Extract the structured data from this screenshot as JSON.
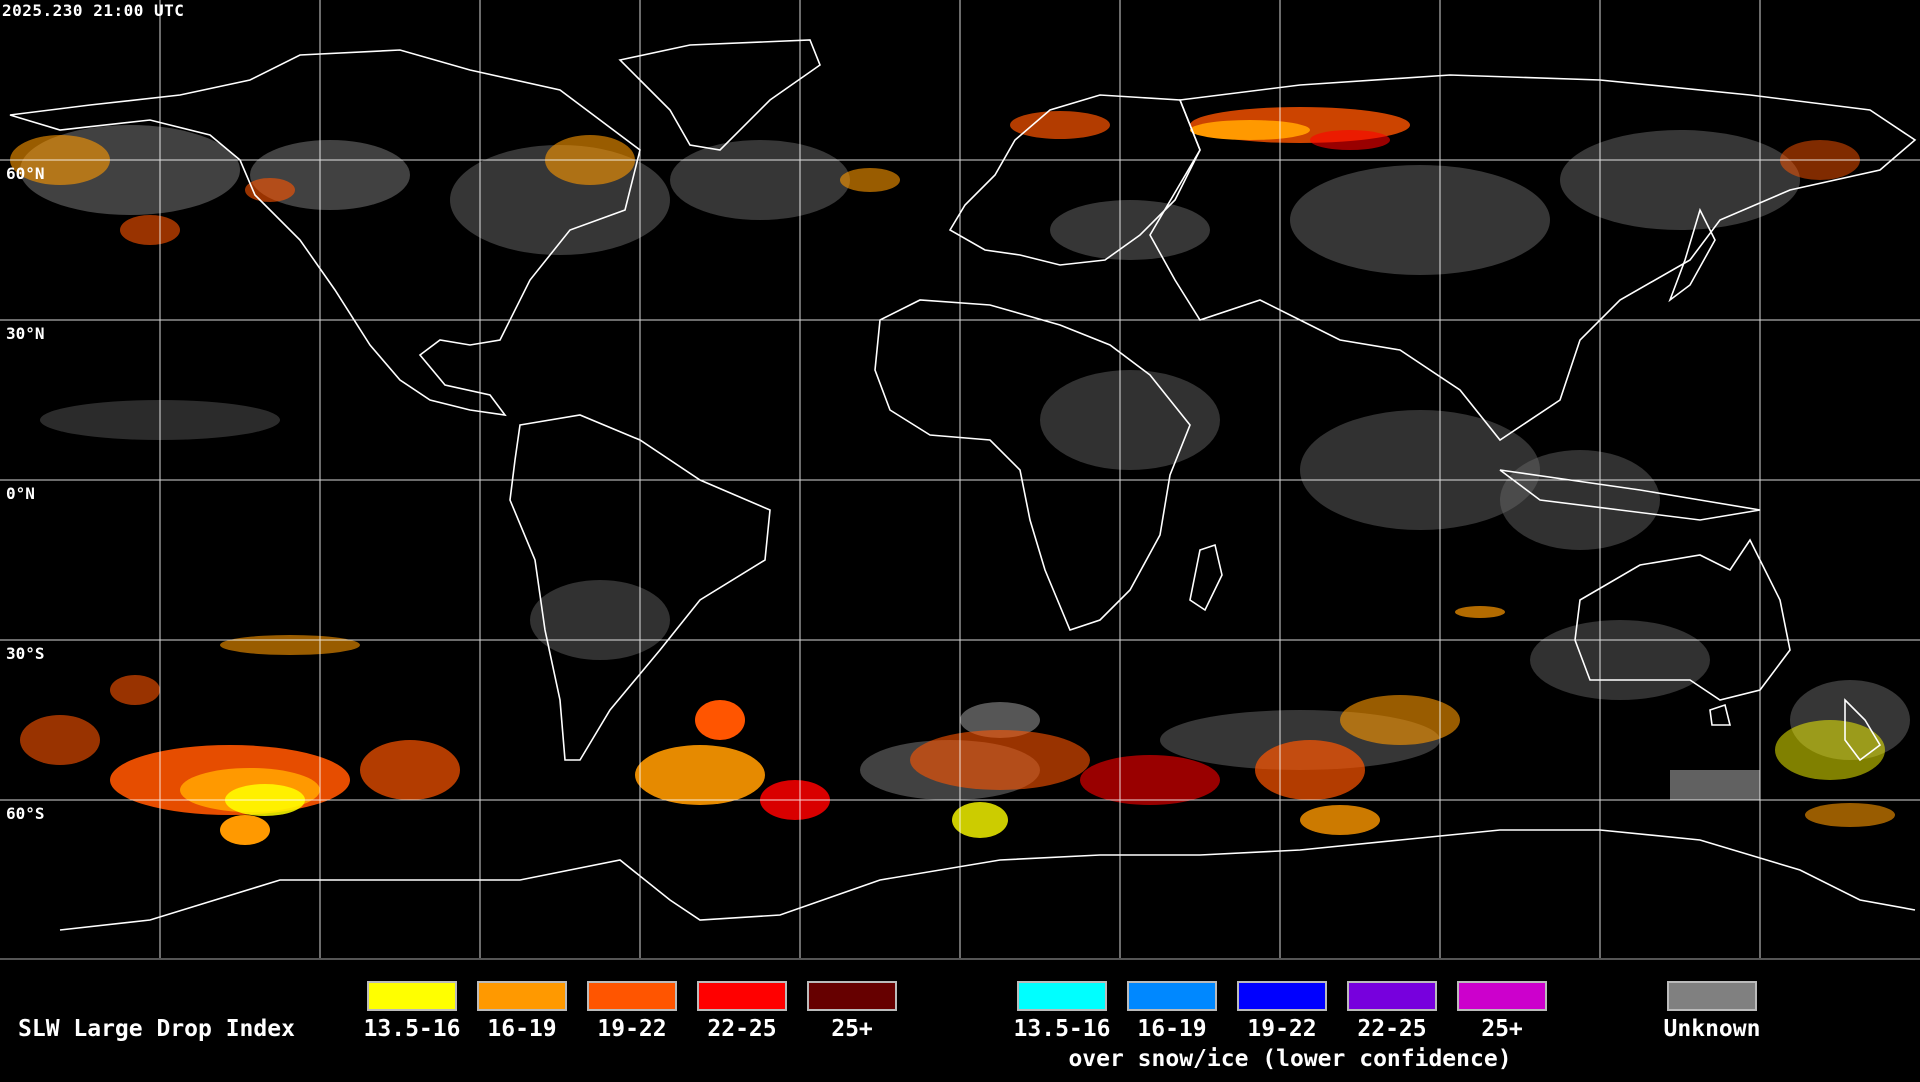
{
  "header": {
    "timestamp": "2025.230 21:00 UTC"
  },
  "map": {
    "lat_labels": [
      "60°N",
      "30°N",
      "0°N",
      "30°S",
      "60°S"
    ],
    "colors": {
      "background": "#000000",
      "grid": "#ffffff",
      "coast": "#ffffff",
      "unknown": "#808080"
    }
  },
  "legend": {
    "title": "SLW Large Drop Index",
    "normal": [
      {
        "label": "13.5-16",
        "color": "#ffff00"
      },
      {
        "label": "16-19",
        "color": "#ff9900"
      },
      {
        "label": "19-22",
        "color": "#ff5500"
      },
      {
        "label": "22-25",
        "color": "#ff0000"
      },
      {
        "label": "25+",
        "color": "#660000"
      }
    ],
    "snow": [
      {
        "label": "13.5-16",
        "color": "#00ffff"
      },
      {
        "label": "16-19",
        "color": "#0088ff"
      },
      {
        "label": "19-22",
        "color": "#0000ff"
      },
      {
        "label": "22-25",
        "color": "#7700dd"
      },
      {
        "label": "25+",
        "color": "#cc00cc"
      }
    ],
    "snow_note": "over snow/ice (lower confidence)",
    "unknown": {
      "label": "Unknown",
      "color": "#808080"
    }
  }
}
